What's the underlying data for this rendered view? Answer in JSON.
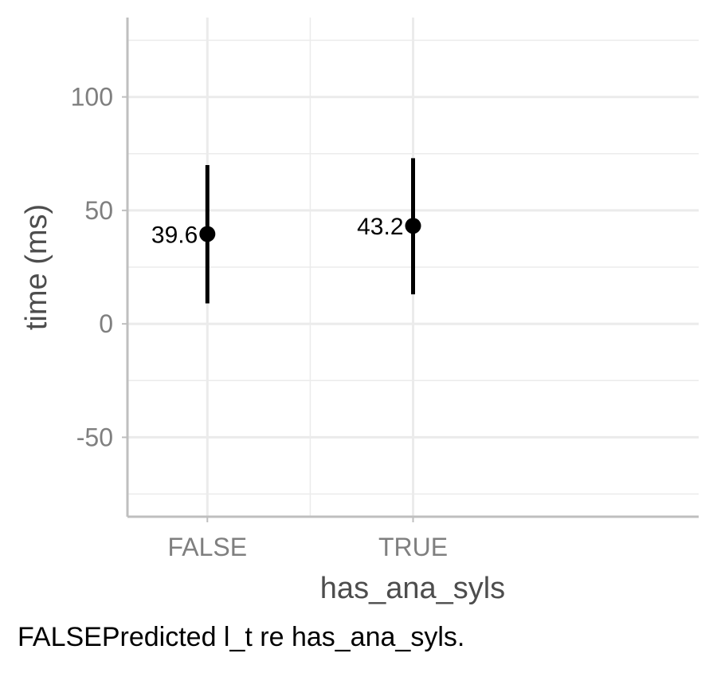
{
  "chart_data": {
    "type": "scatter",
    "categories": [
      "FALSE",
      "TRUE"
    ],
    "points": [
      {
        "category": "FALSE",
        "value": 39.6,
        "lower": 9,
        "upper": 70,
        "label": "39.6"
      },
      {
        "category": "TRUE",
        "value": 43.2,
        "lower": 13,
        "upper": 73,
        "label": "43.2"
      }
    ],
    "xlabel": "has_ana_syls",
    "ylabel": "time (ms)",
    "ylim": [
      -85,
      135
    ],
    "yticks": [
      -50,
      0,
      50,
      100
    ],
    "ytick_labels": [
      "-50",
      "0",
      "50",
      "100"
    ],
    "grid": true,
    "colors": {
      "points": "#000000",
      "grid": "#ebebeb",
      "axis": "#bfbfbf"
    }
  },
  "caption": "FALSEPredicted l_t re has_ana_syls."
}
